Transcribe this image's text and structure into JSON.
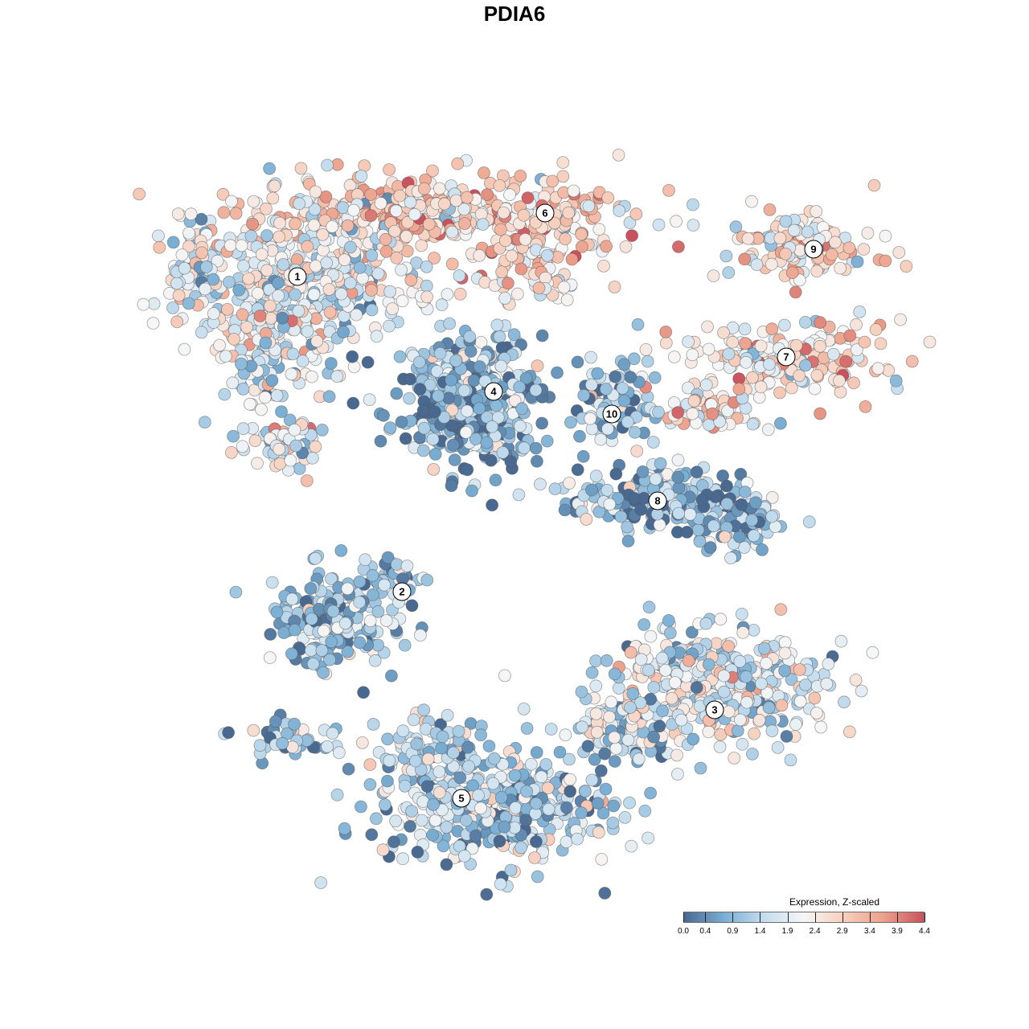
{
  "chart_data": {
    "type": "scatter",
    "title": "PDIA6",
    "xlabel": "",
    "ylabel": "",
    "grid": false,
    "axes_visible": false,
    "legend": {
      "title": "Expression, Z-scaled",
      "placement": "bottom-right",
      "ticks": [
        "0.0",
        "0.4",
        "0.9",
        "1.4",
        "1.9",
        "2.4",
        "2.9",
        "3.4",
        "3.9",
        "4.4"
      ],
      "range": [
        0.0,
        4.4
      ]
    },
    "colorscale": [
      "#4a6990",
      "#7aaed3",
      "#c4ddee",
      "#f6f6f6",
      "#f7cfbd",
      "#eca08b",
      "#c9525e"
    ],
    "clusters": [
      {
        "label": "1",
        "mean_expression": 2.0
      },
      {
        "label": "2",
        "mean_expression": 1.1
      },
      {
        "label": "3",
        "mean_expression": 1.7
      },
      {
        "label": "4",
        "mean_expression": 0.9
      },
      {
        "label": "5",
        "mean_expression": 1.3
      },
      {
        "label": "6",
        "mean_expression": 2.7
      },
      {
        "label": "7",
        "mean_expression": 2.5
      },
      {
        "label": "8",
        "mean_expression": 0.9
      },
      {
        "label": "9",
        "mean_expression": 2.6
      },
      {
        "label": "10",
        "mean_expression": 1.2
      }
    ]
  }
}
